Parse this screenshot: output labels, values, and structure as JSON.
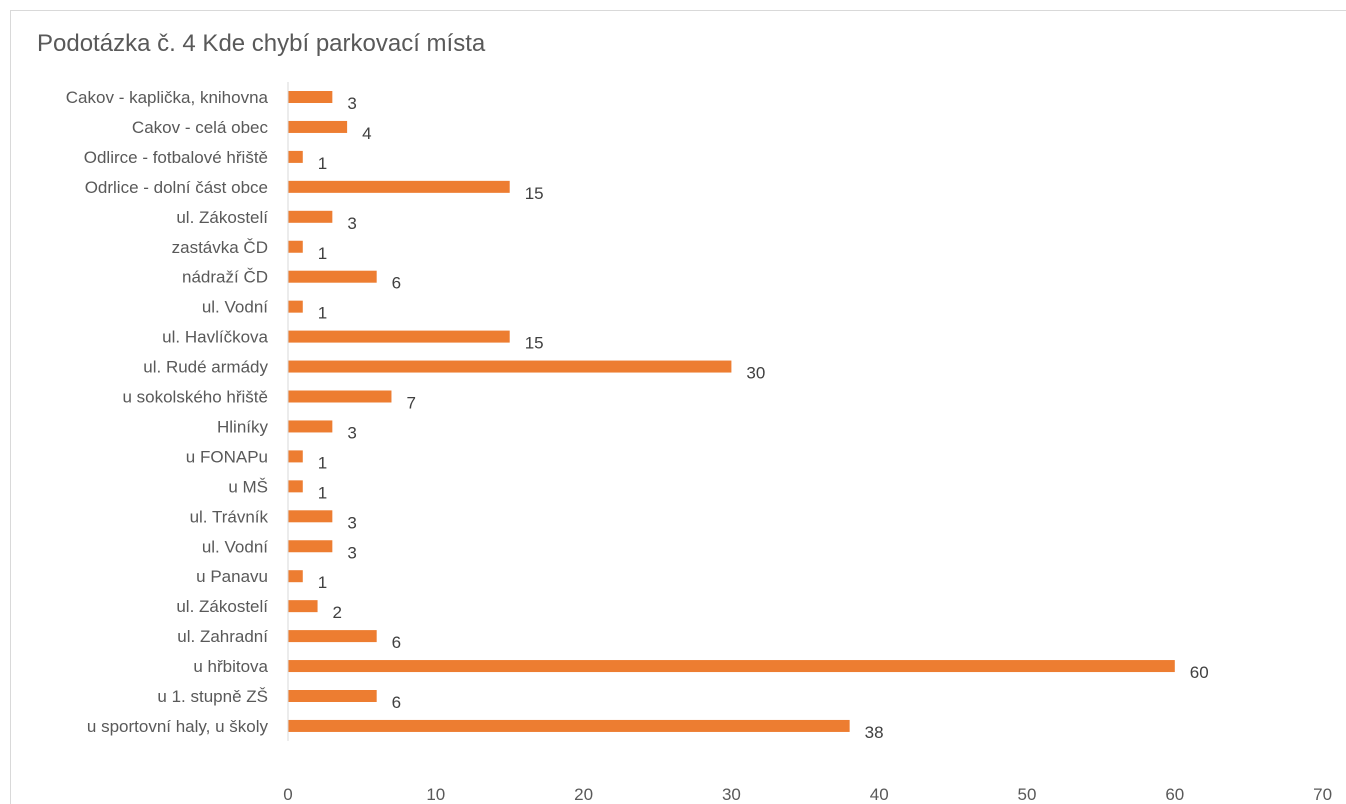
{
  "chart_data": {
    "type": "bar",
    "orientation": "horizontal",
    "title": "Podotázka č. 4 Kde chybí parkovací místa",
    "xlabel": "",
    "ylabel": "",
    "categories": [
      "Cakov - kaplička, knihovna",
      "Cakov - celá obec",
      "Odlirce - fotbalové hřiště",
      "Odrlice - dolní část obce",
      "ul. Zákostelí",
      "zastávka ČD",
      "nádraží ČD",
      "ul. Vodní",
      "ul. Havlíčkova",
      "ul. Rudé armády",
      "u sokolského hřiště",
      "Hliníky",
      "u FONAPu",
      "u MŠ",
      "ul. Trávník",
      "ul. Vodní",
      "u Panavu",
      "ul. Zákostelí",
      "ul. Zahradní",
      "u hřbitova",
      "u 1. stupně ZŠ",
      "u sportovní haly, u školy"
    ],
    "values": [
      3,
      4,
      1,
      15,
      3,
      1,
      6,
      1,
      15,
      30,
      7,
      3,
      1,
      1,
      3,
      3,
      1,
      2,
      6,
      60,
      6,
      38
    ],
    "xlim": [
      0,
      70
    ],
    "xticks": [
      0,
      10,
      20,
      30,
      40,
      50,
      60,
      70
    ],
    "data_labels": true,
    "grid": false,
    "legend": "none",
    "bar_color": "#ed7d31"
  }
}
